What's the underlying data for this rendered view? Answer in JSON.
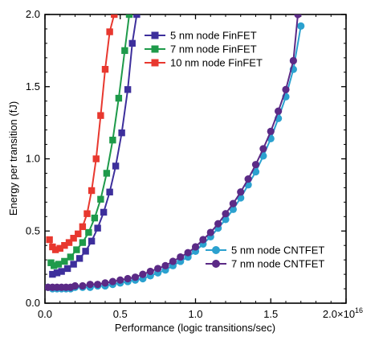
{
  "chart_data": {
    "type": "line",
    "xlabel": "Performance (logic transitions/sec)",
    "ylabel": "Energy per transition (fJ)",
    "xlim": [
      0,
      2.0
    ],
    "ylim": [
      0,
      2.0
    ],
    "x_ticks": [
      "0.0",
      "0.5",
      "1.0",
      "1.5",
      "2.0×10"
    ],
    "x_tick_exponent": "16",
    "y_ticks": [
      "0.0",
      "0.5",
      "1.0",
      "1.5",
      "2.0"
    ],
    "legend_upper": "top-center",
    "legend_lower": "bottom-right",
    "grid": false,
    "series": [
      {
        "name": "5 nm node FinFET",
        "color": "#3d2f9c",
        "marker": "square",
        "x": [
          0.05,
          0.08,
          0.11,
          0.15,
          0.19,
          0.23,
          0.27,
          0.31,
          0.35,
          0.39,
          0.43,
          0.47,
          0.51,
          0.55,
          0.58,
          0.61
        ],
        "y": [
          0.2,
          0.21,
          0.22,
          0.24,
          0.27,
          0.31,
          0.36,
          0.43,
          0.52,
          0.63,
          0.77,
          0.95,
          1.18,
          1.48,
          1.8,
          2.0
        ]
      },
      {
        "name": "7 nm node FinFET",
        "color": "#1e9a4a",
        "marker": "square",
        "x": [
          0.04,
          0.06,
          0.09,
          0.13,
          0.17,
          0.21,
          0.25,
          0.29,
          0.33,
          0.37,
          0.41,
          0.45,
          0.49,
          0.53,
          0.56
        ],
        "y": [
          0.28,
          0.26,
          0.27,
          0.29,
          0.32,
          0.37,
          0.42,
          0.49,
          0.59,
          0.72,
          0.9,
          1.13,
          1.42,
          1.75,
          2.0
        ]
      },
      {
        "name": "10 nm node FinFET",
        "color": "#e8382f",
        "marker": "square",
        "x": [
          0.03,
          0.05,
          0.07,
          0.1,
          0.13,
          0.16,
          0.19,
          0.22,
          0.25,
          0.28,
          0.31,
          0.34,
          0.37,
          0.4,
          0.43,
          0.46
        ],
        "y": [
          0.44,
          0.39,
          0.37,
          0.38,
          0.4,
          0.42,
          0.45,
          0.48,
          0.53,
          0.62,
          0.78,
          1.0,
          1.3,
          1.62,
          1.88,
          2.0
        ]
      },
      {
        "name": "5 nm node CNTFET",
        "color": "#2ba1cf",
        "marker": "circle",
        "x": [
          0.02,
          0.05,
          0.08,
          0.11,
          0.14,
          0.17,
          0.2,
          0.25,
          0.3,
          0.35,
          0.4,
          0.45,
          0.5,
          0.55,
          0.6,
          0.65,
          0.7,
          0.75,
          0.8,
          0.85,
          0.9,
          0.95,
          1.0,
          1.05,
          1.1,
          1.15,
          1.2,
          1.25,
          1.3,
          1.35,
          1.4,
          1.45,
          1.5,
          1.55,
          1.6,
          1.65,
          1.7
        ],
        "y": [
          0.11,
          0.1,
          0.1,
          0.1,
          0.1,
          0.1,
          0.11,
          0.11,
          0.11,
          0.12,
          0.12,
          0.13,
          0.14,
          0.15,
          0.16,
          0.17,
          0.19,
          0.21,
          0.23,
          0.26,
          0.29,
          0.32,
          0.36,
          0.41,
          0.46,
          0.52,
          0.58,
          0.65,
          0.73,
          0.82,
          0.91,
          1.02,
          1.14,
          1.28,
          1.43,
          1.62,
          1.92
        ]
      },
      {
        "name": "7 nm node CNTFET",
        "color": "#5b2a86",
        "marker": "circle",
        "x": [
          0.02,
          0.05,
          0.08,
          0.11,
          0.14,
          0.17,
          0.2,
          0.25,
          0.3,
          0.35,
          0.4,
          0.45,
          0.5,
          0.55,
          0.6,
          0.65,
          0.7,
          0.75,
          0.8,
          0.85,
          0.9,
          0.95,
          1.0,
          1.05,
          1.1,
          1.15,
          1.2,
          1.25,
          1.3,
          1.35,
          1.4,
          1.45,
          1.5,
          1.55,
          1.6,
          1.65,
          1.68
        ],
        "y": [
          0.11,
          0.11,
          0.11,
          0.11,
          0.11,
          0.11,
          0.12,
          0.12,
          0.13,
          0.13,
          0.14,
          0.15,
          0.16,
          0.17,
          0.18,
          0.2,
          0.22,
          0.24,
          0.26,
          0.29,
          0.32,
          0.35,
          0.39,
          0.44,
          0.49,
          0.55,
          0.62,
          0.69,
          0.77,
          0.86,
          0.96,
          1.07,
          1.19,
          1.33,
          1.48,
          1.68,
          2.0
        ]
      }
    ]
  }
}
